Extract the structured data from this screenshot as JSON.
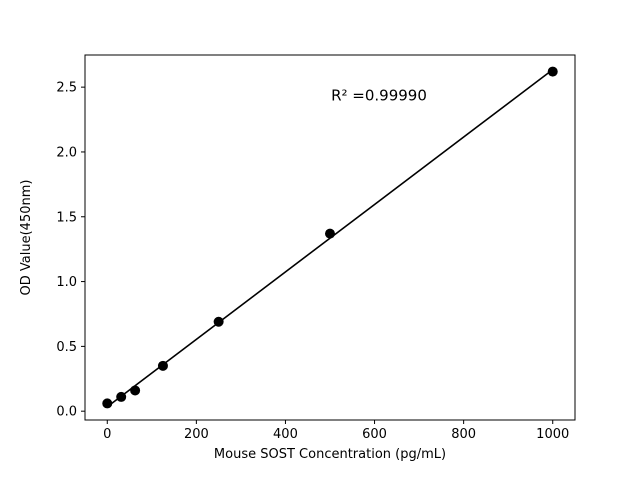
{
  "chart_data": {
    "type": "scatter",
    "title": "",
    "xlabel": "Mouse SOST Concentration (pg/mL)",
    "ylabel": "OD Value(450nm)",
    "annotation": "R² =0.99990",
    "x": [
      0,
      31.25,
      62.5,
      125,
      250,
      500,
      1000
    ],
    "y": [
      0.06,
      0.11,
      0.16,
      0.35,
      0.69,
      1.37,
      2.62
    ],
    "fit_line": "linear",
    "xlim": [
      -50,
      1050
    ],
    "ylim": [
      -0.068,
      2.748
    ],
    "xticks": [
      0,
      200,
      400,
      600,
      800,
      1000
    ],
    "yticks": [
      0.0,
      0.5,
      1.0,
      1.5,
      2.0,
      2.5
    ],
    "xtick_labels": [
      "0",
      "200",
      "400",
      "600",
      "800",
      "1000"
    ],
    "ytick_labels": [
      "0.0",
      "0.5",
      "1.0",
      "1.5",
      "2.0",
      "2.5"
    ],
    "grid": false,
    "legend": "none",
    "colors": {
      "marker": "#000000",
      "line": "#000000",
      "spine": "#000000",
      "background": "#ffffff"
    }
  }
}
